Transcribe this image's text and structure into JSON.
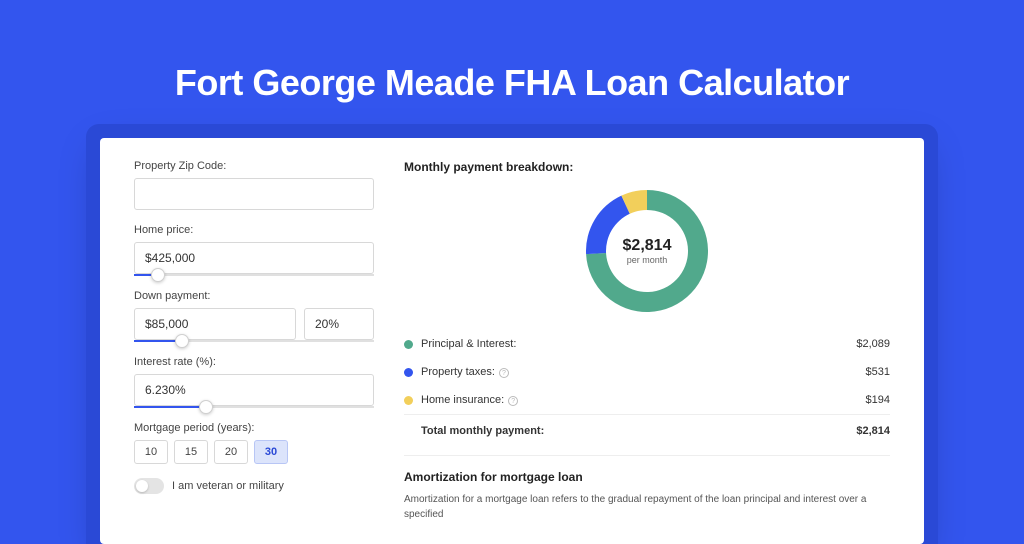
{
  "page": {
    "title": "Fort George Meade FHA Loan Calculator",
    "bg_color": "#3355ee",
    "shadow_ring_color": "#2a49d6"
  },
  "form": {
    "zip": {
      "label": "Property Zip Code:",
      "value": ""
    },
    "home_price": {
      "label": "Home price:",
      "value": "$425,000",
      "slider_pct": 10
    },
    "down_payment": {
      "label": "Down payment:",
      "value": "$85,000",
      "pct_value": "20%",
      "slider_pct": 20
    },
    "interest_rate": {
      "label": "Interest rate (%):",
      "value": "6.230%",
      "slider_pct": 30
    },
    "mortgage_period": {
      "label": "Mortgage period (years):",
      "options": [
        "10",
        "15",
        "20",
        "30"
      ],
      "active_index": 3
    },
    "veteran": {
      "label": "I am veteran or military",
      "checked": false
    }
  },
  "breakdown": {
    "title": "Monthly payment breakdown:",
    "donut": {
      "amount": "$2,814",
      "sub": "per month",
      "segments": [
        {
          "color": "#51a98c",
          "pct": 74.2
        },
        {
          "color": "#3355ee",
          "pct": 18.9
        },
        {
          "color": "#f2cf5b",
          "pct": 6.9
        }
      ],
      "thickness": 20
    },
    "items": [
      {
        "dot": "#51a98c",
        "label": "Principal & Interest:",
        "value": "$2,089",
        "info": false
      },
      {
        "dot": "#3355ee",
        "label": "Property taxes:",
        "value": "$531",
        "info": true
      },
      {
        "dot": "#f2cf5b",
        "label": "Home insurance:",
        "value": "$194",
        "info": true
      }
    ],
    "total": {
      "label": "Total monthly payment:",
      "value": "$2,814"
    }
  },
  "amortization": {
    "title": "Amortization for mortgage loan",
    "text": "Amortization for a mortgage loan refers to the gradual repayment of the loan principal and interest over a specified"
  }
}
